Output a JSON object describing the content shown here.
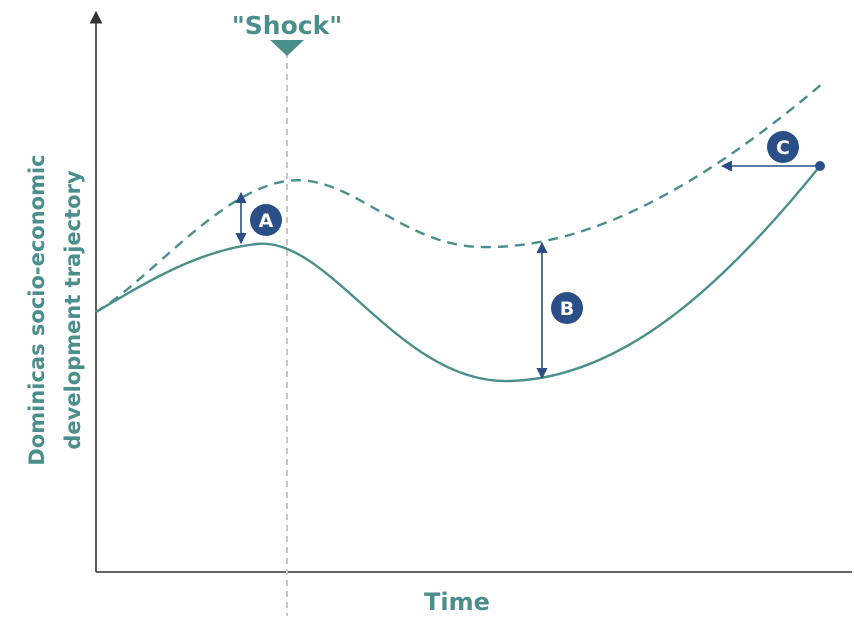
{
  "colors": {
    "trajectory": "#4a8f8c",
    "marker": "#2a4f86",
    "axis": "#333333",
    "shock_line": "#c8c8c8"
  },
  "labels": {
    "shock": "\"Shock\"",
    "x_axis": "Time",
    "y_axis_line1": "Dominicas socio-economic",
    "y_axis_line2": "development trajectory"
  },
  "markers": {
    "a": "A",
    "b": "B",
    "c": "C"
  },
  "series": {
    "expected": "dashed",
    "actual": "solid"
  }
}
